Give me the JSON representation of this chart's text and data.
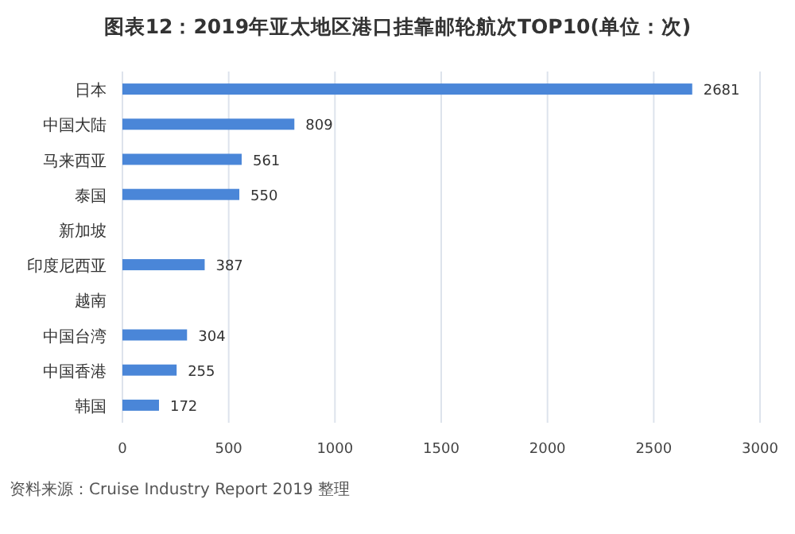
{
  "chart_data": {
    "type": "bar",
    "orientation": "horizontal",
    "title": "图表12：2019年亚太地区港口挂靠邮轮航次TOP10(单位：次)",
    "categories": [
      "日本",
      "中国大陆",
      "马来西亚",
      "泰国",
      "新加坡",
      "印度尼西亚",
      "越南",
      "中国台湾",
      "中国香港",
      "韩国"
    ],
    "values": [
      2681,
      809,
      561,
      550,
      null,
      387,
      null,
      304,
      255,
      172
    ],
    "value_labels": [
      "2681",
      "809",
      "561",
      "550",
      null,
      "387",
      null,
      "304",
      "255",
      "172"
    ],
    "color": "#4a86d8",
    "xlim": [
      0,
      3000
    ],
    "xticks": [
      0,
      500,
      1000,
      1500,
      2000,
      2500,
      3000
    ],
    "grid": "x",
    "annotations": [
      "资料来源：Cruise Industry Report 2019 整理"
    ]
  }
}
